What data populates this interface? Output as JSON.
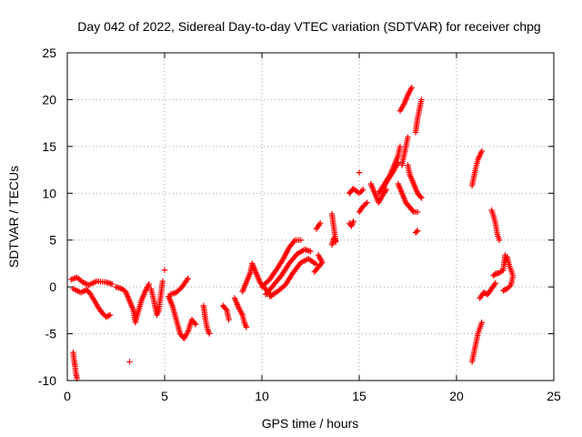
{
  "chart_data": {
    "type": "scatter",
    "title": "Day 042 of 2022, Sidereal Day-to-day VTEC variation (SDTVAR) for receiver chpg",
    "xlabel": "GPS time / hours",
    "ylabel": "SDTVAR / TECUs",
    "xlim": [
      0,
      25
    ],
    "ylim": [
      -10,
      25
    ],
    "xticks": [
      0,
      5,
      10,
      15,
      20,
      25
    ],
    "yticks": [
      -10,
      -5,
      0,
      5,
      10,
      15,
      20,
      25
    ],
    "xtick_labels": [
      "0",
      "5",
      "10",
      "15",
      "20",
      "25"
    ],
    "ytick_labels": [
      "-10",
      "-5",
      "0",
      "5",
      "10",
      "15",
      "20",
      "25"
    ],
    "grid": true,
    "marker": "+",
    "color": "#ff0000",
    "series": [
      {
        "name": "SDTVAR",
        "segments": [
          [
            [
              0.3,
              -7.0
            ],
            [
              0.35,
              -7.8
            ],
            [
              0.4,
              -8.5
            ],
            [
              0.45,
              -9.3
            ],
            [
              0.5,
              -9.8
            ]
          ],
          [
            [
              0.2,
              0.8
            ],
            [
              0.5,
              1.0
            ],
            [
              0.8,
              0.5
            ],
            [
              1.1,
              0.2
            ],
            [
              1.5,
              0.6
            ],
            [
              2.0,
              0.5
            ],
            [
              2.3,
              0.3
            ]
          ],
          [
            [
              0.3,
              -0.2
            ],
            [
              0.7,
              -0.6
            ],
            [
              1.0,
              -0.3
            ],
            [
              1.2,
              -0.8
            ],
            [
              1.4,
              -1.5
            ],
            [
              1.6,
              -2.2
            ],
            [
              1.8,
              -2.8
            ],
            [
              2.0,
              -3.2
            ],
            [
              2.2,
              -3.0
            ]
          ],
          [
            [
              2.5,
              0.0
            ],
            [
              2.8,
              -0.2
            ],
            [
              3.0,
              -0.5
            ],
            [
              3.2,
              -1.5
            ],
            [
              3.4,
              -2.5
            ],
            [
              3.5,
              -3.8
            ],
            [
              3.6,
              -3.0
            ],
            [
              3.8,
              -1.5
            ],
            [
              4.0,
              -0.5
            ],
            [
              4.2,
              0.3
            ]
          ],
          [
            [
              4.3,
              -0.2
            ],
            [
              4.4,
              -1.0
            ],
            [
              4.5,
              -2.0
            ],
            [
              4.6,
              -3.0
            ],
            [
              4.7,
              -2.5
            ],
            [
              4.9,
              0.6
            ]
          ],
          [
            [
              3.2,
              -8.0
            ]
          ],
          [
            [
              5.0,
              1.8
            ]
          ],
          [
            [
              5.2,
              -1.0
            ],
            [
              5.4,
              -2.0
            ],
            [
              5.6,
              -3.5
            ],
            [
              5.8,
              -5.0
            ],
            [
              6.0,
              -5.5
            ],
            [
              6.2,
              -4.8
            ],
            [
              6.4,
              -3.5
            ],
            [
              6.6,
              -4.0
            ]
          ],
          [
            [
              5.3,
              -0.8
            ],
            [
              5.6,
              -0.6
            ],
            [
              5.9,
              0.0
            ],
            [
              6.1,
              0.6
            ],
            [
              6.2,
              0.9
            ]
          ],
          [
            [
              7.0,
              -2.0
            ],
            [
              7.1,
              -3.5
            ],
            [
              7.2,
              -4.5
            ],
            [
              7.3,
              -5.0
            ]
          ],
          [
            [
              8.0,
              -2.0
            ],
            [
              8.2,
              -2.5
            ],
            [
              8.3,
              -3.5
            ]
          ],
          [
            [
              8.6,
              -1.2
            ],
            [
              8.8,
              -2.2
            ],
            [
              9.0,
              -3.0
            ],
            [
              9.1,
              -3.8
            ],
            [
              9.2,
              -4.3
            ]
          ],
          [
            [
              9.0,
              -0.5
            ],
            [
              9.2,
              0.5
            ],
            [
              9.4,
              1.5
            ],
            [
              9.5,
              2.5
            ],
            [
              9.7,
              1.5
            ],
            [
              9.9,
              0.5
            ],
            [
              10.1,
              0.0
            ],
            [
              10.3,
              -0.5
            ],
            [
              10.5,
              -1.0
            ]
          ],
          [
            [
              10.0,
              0.0
            ],
            [
              10.4,
              0.8
            ],
            [
              10.8,
              2.0
            ],
            [
              11.1,
              3.0
            ],
            [
              11.4,
              4.2
            ],
            [
              11.7,
              5.0
            ],
            [
              12.0,
              5.0
            ]
          ],
          [
            [
              10.2,
              -0.8
            ],
            [
              10.6,
              0.2
            ],
            [
              11.0,
              1.2
            ],
            [
              11.4,
              2.5
            ],
            [
              11.8,
              3.5
            ],
            [
              12.2,
              4.0
            ],
            [
              12.5,
              3.8
            ]
          ],
          [
            [
              10.4,
              -1.0
            ],
            [
              10.8,
              -0.5
            ],
            [
              11.2,
              0.2
            ],
            [
              11.6,
              1.5
            ],
            [
              12.0,
              2.6
            ],
            [
              12.4,
              3.0
            ],
            [
              12.8,
              2.4
            ]
          ],
          [
            [
              12.9,
              3.4
            ],
            [
              13.1,
              2.6
            ],
            [
              12.7,
              1.6
            ]
          ],
          [
            [
              12.8,
              6.2
            ],
            [
              13.0,
              6.8
            ]
          ],
          [
            [
              13.6,
              4.5
            ],
            [
              13.7,
              5.2
            ],
            [
              13.8,
              4.8
            ],
            [
              13.6,
              7.8
            ]
          ],
          [
            [
              14.5,
              6.8
            ],
            [
              14.6,
              6.5
            ],
            [
              14.7,
              7.0
            ]
          ],
          [
            [
              14.5,
              10.0
            ],
            [
              14.7,
              10.5
            ],
            [
              15.0,
              10.0
            ],
            [
              15.2,
              10.4
            ]
          ],
          [
            [
              15.0,
              12.2
            ]
          ],
          [
            [
              15.0,
              8.0
            ],
            [
              15.2,
              8.6
            ],
            [
              15.4,
              9.0
            ]
          ],
          [
            [
              15.6,
              11.0
            ],
            [
              15.8,
              10.0
            ],
            [
              16.0,
              9.0
            ],
            [
              16.2,
              9.8
            ],
            [
              16.4,
              10.4
            ]
          ],
          [
            [
              16.0,
              10.0
            ],
            [
              16.3,
              11.0
            ],
            [
              16.6,
              12.0
            ],
            [
              16.8,
              13.0
            ],
            [
              17.0,
              14.0
            ],
            [
              17.1,
              15.0
            ]
          ],
          [
            [
              16.2,
              10.5
            ],
            [
              16.5,
              11.5
            ],
            [
              16.8,
              12.5
            ],
            [
              17.0,
              13.3
            ]
          ],
          [
            [
              17.0,
              11.0
            ],
            [
              17.2,
              10.0
            ],
            [
              17.4,
              9.0
            ],
            [
              17.6,
              8.5
            ],
            [
              17.8,
              8.0
            ],
            [
              18.0,
              8.0
            ]
          ],
          [
            [
              17.2,
              13.0
            ],
            [
              17.3,
              14.0
            ],
            [
              17.4,
              15.0
            ],
            [
              17.5,
              16.0
            ]
          ],
          [
            [
              17.5,
              13.0
            ],
            [
              17.6,
              12.0
            ],
            [
              17.8,
              11.0
            ],
            [
              18.0,
              10.0
            ],
            [
              18.2,
              9.5
            ]
          ],
          [
            [
              17.1,
              18.8
            ],
            [
              17.3,
              19.5
            ],
            [
              17.5,
              20.5
            ],
            [
              17.7,
              21.3
            ]
          ],
          [
            [
              17.9,
              16.5
            ],
            [
              18.0,
              18.0
            ],
            [
              18.1,
              19.0
            ],
            [
              18.2,
              20.0
            ]
          ],
          [
            [
              17.9,
              5.8
            ],
            [
              18.0,
              6.0
            ]
          ],
          [
            [
              20.8,
              10.8
            ],
            [
              20.9,
              11.8
            ],
            [
              21.0,
              12.8
            ],
            [
              21.1,
              13.6
            ],
            [
              21.3,
              14.5
            ]
          ],
          [
            [
              20.8,
              -8.0
            ],
            [
              20.9,
              -7.0
            ],
            [
              21.0,
              -6.0
            ],
            [
              21.1,
              -5.0
            ],
            [
              21.2,
              -4.4
            ],
            [
              21.3,
              -3.8
            ]
          ],
          [
            [
              21.2,
              -1.2
            ],
            [
              21.4,
              -0.6
            ],
            [
              21.6,
              -0.8
            ],
            [
              21.8,
              -0.2
            ],
            [
              22.0,
              0.4
            ]
          ],
          [
            [
              21.8,
              8.2
            ],
            [
              21.9,
              7.6
            ],
            [
              22.0,
              6.8
            ],
            [
              22.1,
              5.6
            ],
            [
              22.2,
              5.0
            ]
          ],
          [
            [
              21.9,
              1.2
            ],
            [
              22.0,
              1.4
            ],
            [
              22.2,
              1.5
            ],
            [
              22.4,
              1.8
            ],
            [
              22.5,
              3.4
            ]
          ],
          [
            [
              22.5,
              2.6
            ],
            [
              22.6,
              3.2
            ],
            [
              22.7,
              2.4
            ],
            [
              22.8,
              1.8
            ],
            [
              22.9,
              1.2
            ],
            [
              22.8,
              0.2
            ],
            [
              22.6,
              -0.2
            ],
            [
              22.4,
              -0.4
            ]
          ]
        ]
      }
    ]
  }
}
